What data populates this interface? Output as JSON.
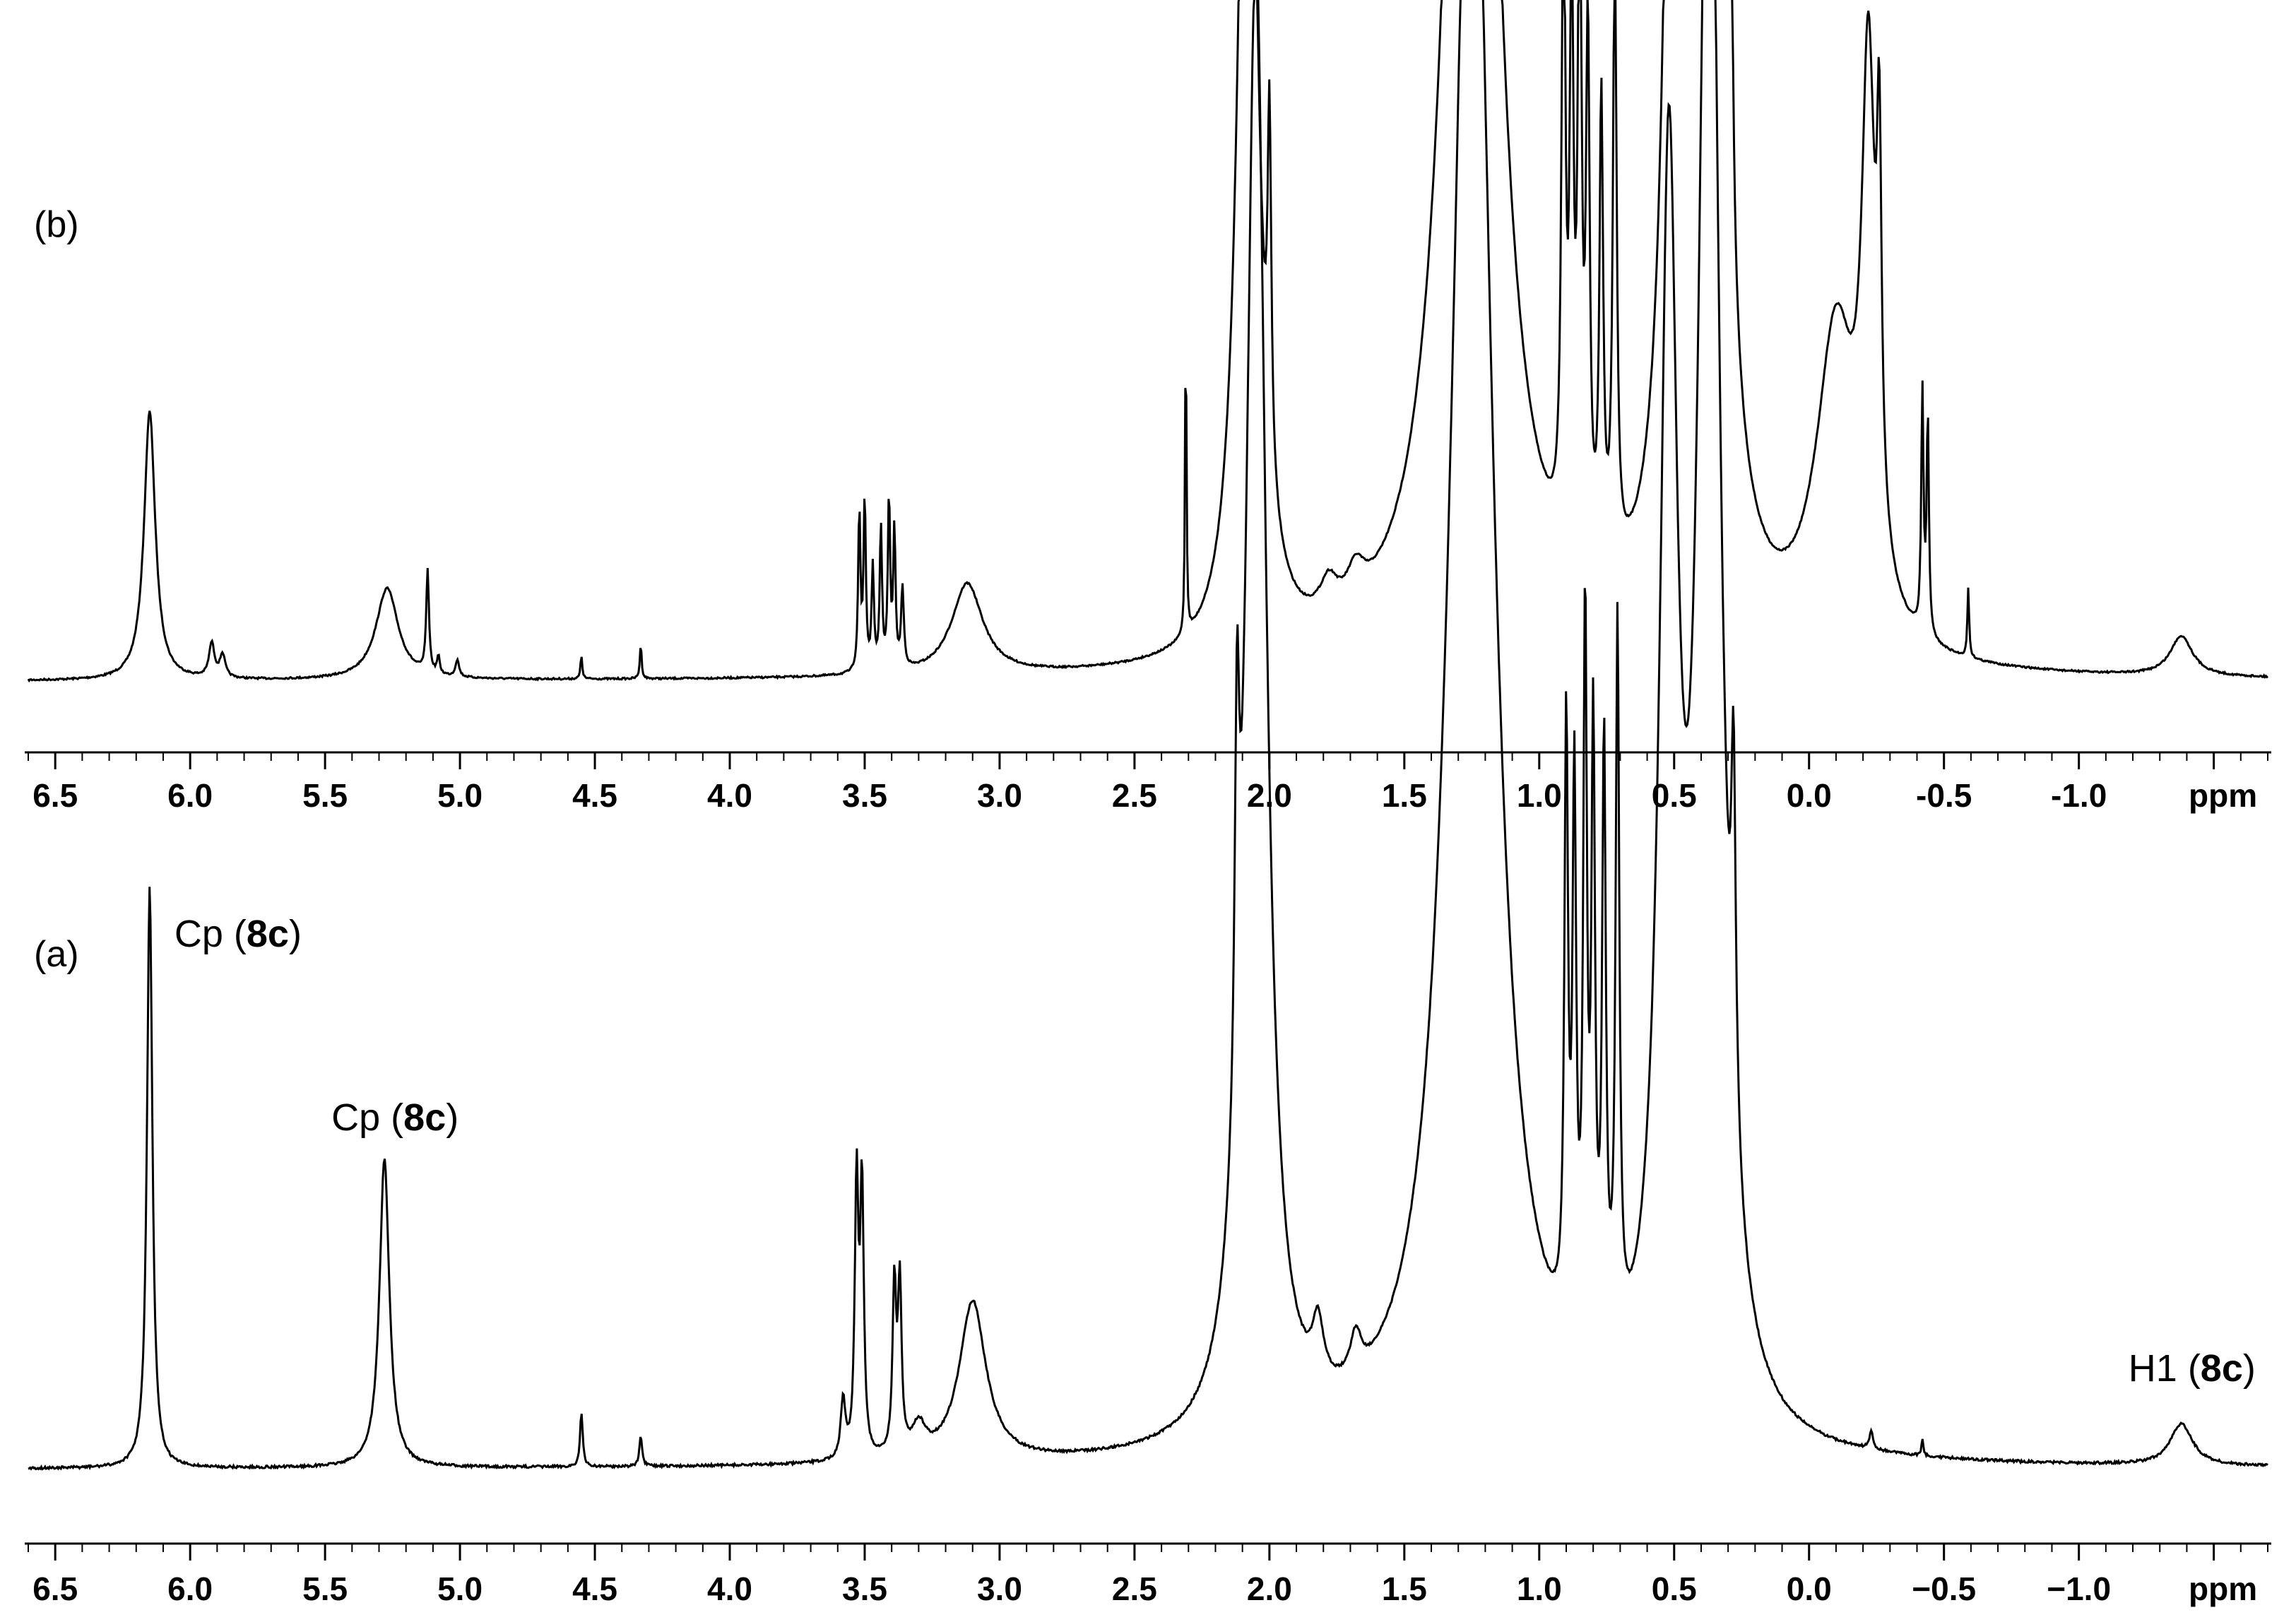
{
  "chart_data": [
    {
      "panel_label": "(b)",
      "type": "line",
      "axis_unit": "ppm",
      "xlim": [
        6.6,
        -1.7
      ],
      "x_direction": "reversed",
      "ticks": [
        "6.5",
        "6.0",
        "5.5",
        "5.0",
        "4.5",
        "4.0",
        "3.5",
        "3.0",
        "2.5",
        "2.0",
        "1.5",
        "1.0",
        "0.5",
        "0.0",
        "-0.5",
        "-1.0"
      ],
      "tick_values": [
        6.5,
        6.0,
        5.5,
        5.0,
        4.5,
        4.0,
        3.5,
        3.0,
        2.5,
        2.0,
        1.5,
        1.0,
        0.5,
        0.0,
        -0.5,
        -1.0
      ],
      "peaks": [
        {
          "x": 6.15,
          "h": 0.47,
          "w": 0.025
        },
        {
          "x": 5.92,
          "h": 0.06,
          "w": 0.012
        },
        {
          "x": 5.88,
          "h": 0.04,
          "w": 0.012
        },
        {
          "x": 5.27,
          "h": 0.16,
          "w": 0.05
        },
        {
          "x": 5.12,
          "h": 0.18,
          "w": 0.006
        },
        {
          "x": 5.08,
          "h": 0.03,
          "w": 0.006
        },
        {
          "x": 5.01,
          "h": 0.03,
          "w": 0.008
        },
        {
          "x": 4.55,
          "h": 0.04,
          "w": 0.004
        },
        {
          "x": 4.33,
          "h": 0.06,
          "w": 0.004
        },
        {
          "x": 3.52,
          "h": 0.28,
          "w": 0.005
        },
        {
          "x": 3.5,
          "h": 0.3,
          "w": 0.005
        },
        {
          "x": 3.47,
          "h": 0.18,
          "w": 0.005
        },
        {
          "x": 3.44,
          "h": 0.25,
          "w": 0.005
        },
        {
          "x": 3.41,
          "h": 0.3,
          "w": 0.005
        },
        {
          "x": 3.39,
          "h": 0.24,
          "w": 0.005
        },
        {
          "x": 3.36,
          "h": 0.14,
          "w": 0.006
        },
        {
          "x": 3.12,
          "h": 0.16,
          "w": 0.07
        },
        {
          "x": 2.31,
          "h": 0.56,
          "w": 0.003
        },
        {
          "x": 2.08,
          "h": 2.0,
          "w": 0.04
        },
        {
          "x": 2.0,
          "h": 0.6,
          "w": 0.008
        },
        {
          "x": 1.78,
          "h": 0.06,
          "w": 0.04
        },
        {
          "x": 1.68,
          "h": 0.06,
          "w": 0.04
        },
        {
          "x": 1.25,
          "h": 3.0,
          "w": 0.09
        },
        {
          "x": 0.91,
          "h": 1.2,
          "w": 0.008
        },
        {
          "x": 0.88,
          "h": 1.0,
          "w": 0.008
        },
        {
          "x": 0.85,
          "h": 1.2,
          "w": 0.008
        },
        {
          "x": 0.82,
          "h": 0.9,
          "w": 0.008
        },
        {
          "x": 0.77,
          "h": 0.8,
          "w": 0.008
        },
        {
          "x": 0.72,
          "h": 1.1,
          "w": 0.008
        },
        {
          "x": 0.5,
          "h": 2.0,
          "w": 0.035
        },
        {
          "x": 0.38,
          "h": 3.0,
          "w": 0.05
        },
        {
          "x": 0.29,
          "h": 0.6,
          "w": 0.01
        },
        {
          "x": -0.1,
          "h": 0.55,
          "w": 0.09
        },
        {
          "x": -0.22,
          "h": 0.9,
          "w": 0.03
        },
        {
          "x": -0.26,
          "h": 0.6,
          "w": 0.01
        },
        {
          "x": -0.42,
          "h": 0.42,
          "w": 0.005
        },
        {
          "x": -0.44,
          "h": 0.38,
          "w": 0.005
        },
        {
          "x": -0.59,
          "h": 0.12,
          "w": 0.004
        },
        {
          "x": -1.38,
          "h": 0.07,
          "w": 0.05
        }
      ]
    },
    {
      "panel_label": "(a)",
      "type": "line",
      "axis_unit": "ppm",
      "xlim": [
        6.6,
        -1.7
      ],
      "x_direction": "reversed",
      "ticks": [
        "6.5",
        "6.0",
        "5.5",
        "5.0",
        "4.5",
        "4.0",
        "3.5",
        "3.0",
        "2.5",
        "2.0",
        "1.5",
        "1.0",
        "0.5",
        "0.0",
        "−0.5",
        "−1.0"
      ],
      "tick_values": [
        6.5,
        6.0,
        5.5,
        5.0,
        4.5,
        4.0,
        3.5,
        3.0,
        2.5,
        2.0,
        1.5,
        1.0,
        0.5,
        0.0,
        -0.5,
        -1.0
      ],
      "annotations": [
        {
          "x": 6.15,
          "prefix": "Cp (",
          "bold": "8c",
          "suffix": ")"
        },
        {
          "x": 5.28,
          "prefix": "Cp (",
          "bold": "8c",
          "suffix": ")"
        },
        {
          "x": -1.38,
          "prefix": "H1 (",
          "bold": "8c",
          "suffix": ")"
        }
      ],
      "peaks": [
        {
          "x": 6.15,
          "h": 0.98,
          "w": 0.012
        },
        {
          "x": 5.28,
          "h": 0.52,
          "w": 0.022
        },
        {
          "x": 4.55,
          "h": 0.09,
          "w": 0.006
        },
        {
          "x": 4.33,
          "h": 0.05,
          "w": 0.006
        },
        {
          "x": 3.58,
          "h": 0.1,
          "w": 0.01
        },
        {
          "x": 3.53,
          "h": 0.46,
          "w": 0.008
        },
        {
          "x": 3.51,
          "h": 0.45,
          "w": 0.008
        },
        {
          "x": 3.39,
          "h": 0.28,
          "w": 0.008
        },
        {
          "x": 3.37,
          "h": 0.28,
          "w": 0.008
        },
        {
          "x": 3.3,
          "h": 0.05,
          "w": 0.03
        },
        {
          "x": 3.1,
          "h": 0.27,
          "w": 0.06
        },
        {
          "x": 2.12,
          "h": 0.65,
          "w": 0.01
        },
        {
          "x": 2.05,
          "h": 2.5,
          "w": 0.045
        },
        {
          "x": 1.82,
          "h": 0.1,
          "w": 0.025
        },
        {
          "x": 1.68,
          "h": 0.07,
          "w": 0.025
        },
        {
          "x": 1.25,
          "h": 3.0,
          "w": 0.09
        },
        {
          "x": 0.9,
          "h": 1.0,
          "w": 0.008
        },
        {
          "x": 0.87,
          "h": 0.9,
          "w": 0.008
        },
        {
          "x": 0.83,
          "h": 1.2,
          "w": 0.008
        },
        {
          "x": 0.8,
          "h": 1.0,
          "w": 0.008
        },
        {
          "x": 0.76,
          "h": 1.0,
          "w": 0.008
        },
        {
          "x": 0.71,
          "h": 1.2,
          "w": 0.008
        },
        {
          "x": 0.52,
          "h": 2.0,
          "w": 0.04
        },
        {
          "x": 0.37,
          "h": 3.0,
          "w": 0.045
        },
        {
          "x": 0.28,
          "h": 0.6,
          "w": 0.01
        },
        {
          "x": -0.23,
          "h": 0.03,
          "w": 0.008
        },
        {
          "x": -0.42,
          "h": 0.03,
          "w": 0.004
        },
        {
          "x": -1.38,
          "h": 0.07,
          "w": 0.05
        }
      ]
    }
  ]
}
